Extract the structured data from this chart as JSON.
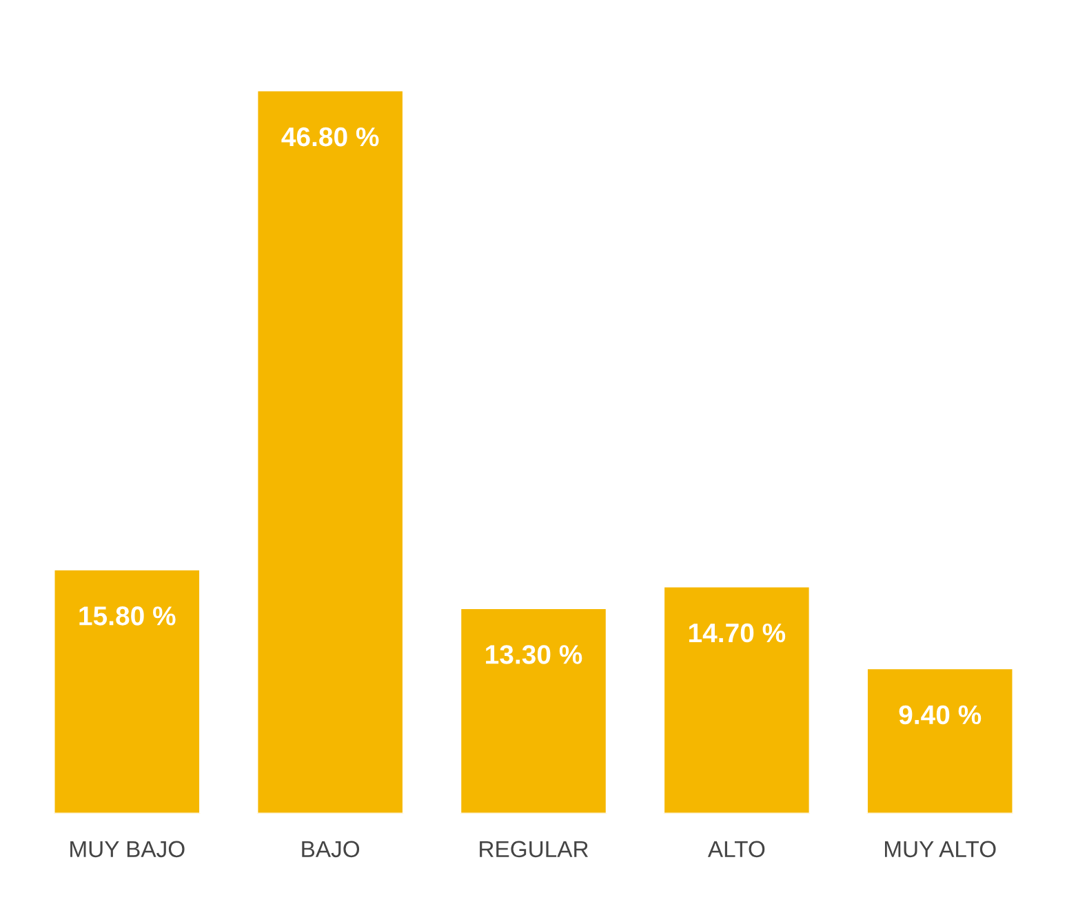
{
  "chart_data": {
    "type": "bar",
    "categories": [
      "MUY BAJO",
      "BAJO",
      "REGULAR",
      "ALTO",
      "MUY ALTO"
    ],
    "values": [
      15.8,
      46.8,
      13.3,
      14.7,
      9.4
    ],
    "value_labels": [
      "15.80 %",
      "46.80 %",
      "13.30 %",
      "14.70 %",
      "9.40 %"
    ],
    "color": "#f5b700",
    "grid": false,
    "legend": false
  }
}
